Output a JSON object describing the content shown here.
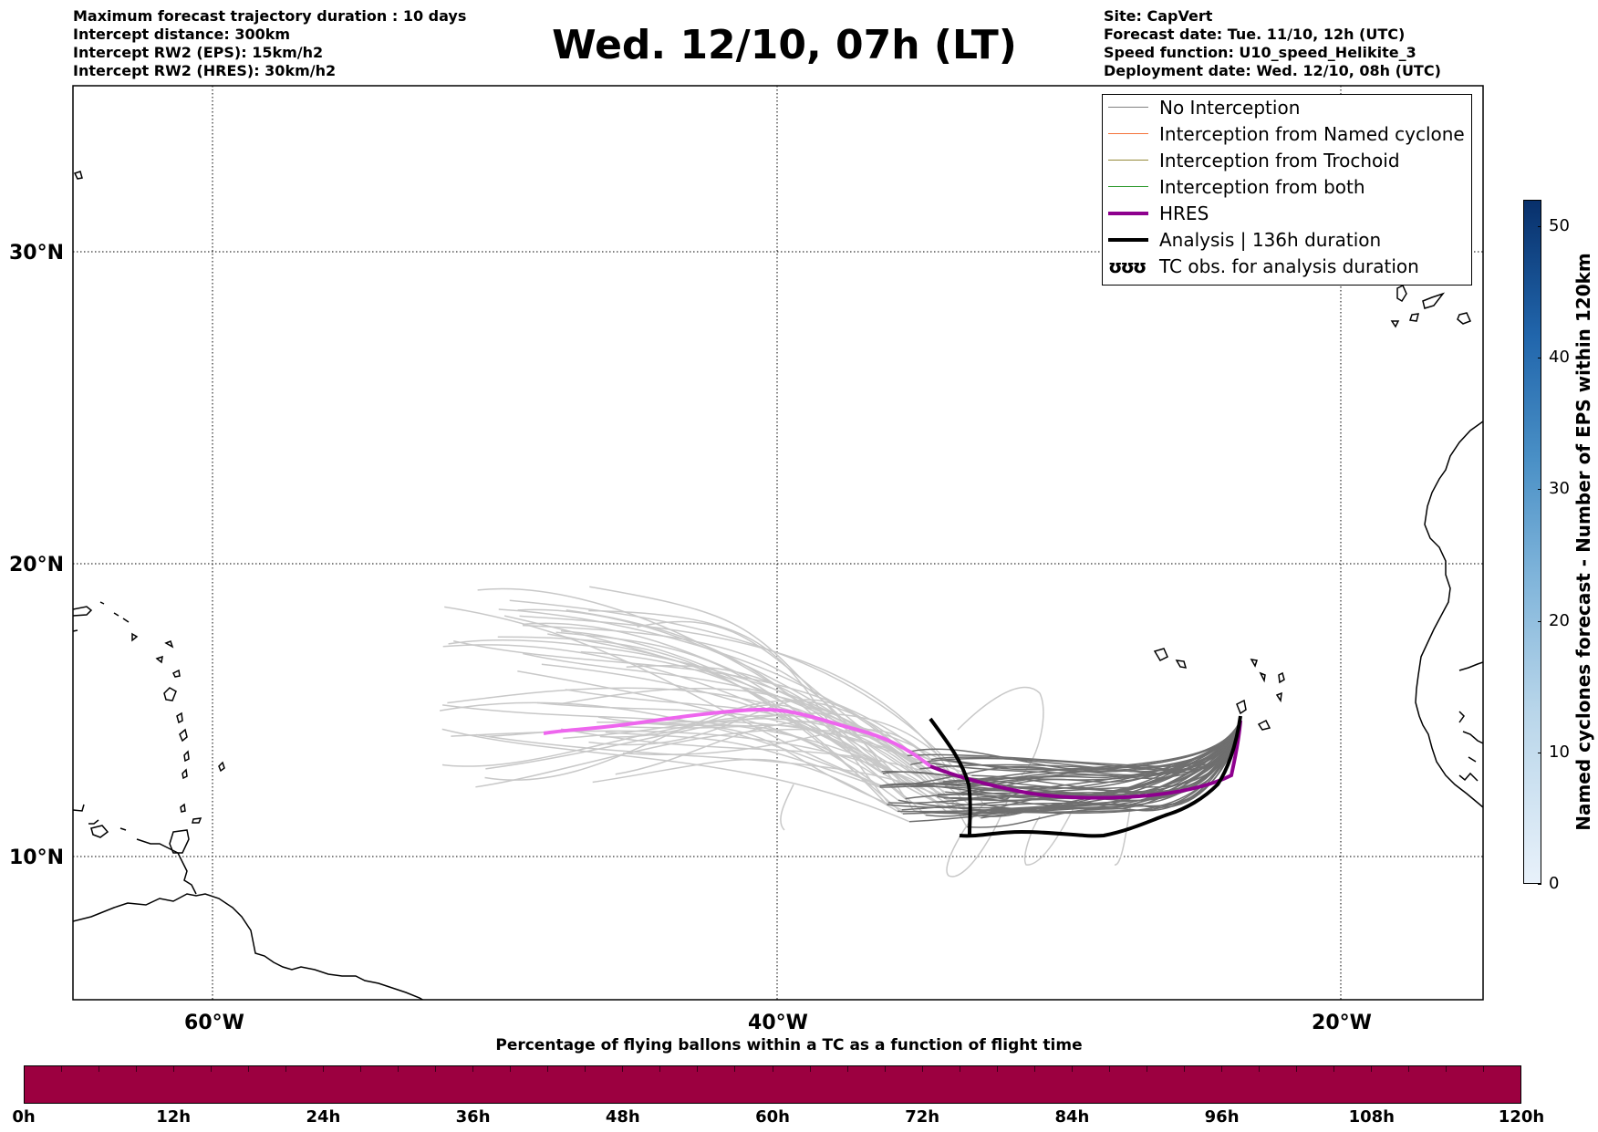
{
  "header": {
    "left_lines": [
      "Maximum forecast trajectory duration : 10 days",
      "Intercept distance: 300km",
      "Intercept RW2 (EPS):  15km/h2",
      "Intercept RW2 (HRES): 30km/h2"
    ],
    "title": "Wed. 12/10, 07h (LT)",
    "right_lines": [
      "Site: CapVert",
      "Forecast date: Tue. 11/10, 12h (UTC)",
      "Speed function: U10_speed_Helikite_3",
      "Deployment date: Wed. 12/10, 08h (UTC)"
    ]
  },
  "map": {
    "lat_labels": [
      "30°N",
      "20°N",
      "10°N"
    ],
    "lon_labels": [
      "60°W",
      "40°W",
      "20°W"
    ]
  },
  "legend": {
    "items": [
      {
        "label": "No Interception",
        "color": "#808080",
        "style": "thin"
      },
      {
        "label": "Interception from Named cyclone",
        "color": "#f4733a",
        "style": "thin"
      },
      {
        "label": "Interception from Trochoid",
        "color": "#948a3a",
        "style": "thin"
      },
      {
        "label": "Interception from both",
        "color": "#2f9a2f",
        "style": "thin"
      },
      {
        "label": "HRES",
        "color": "#8e008e",
        "style": "thick"
      },
      {
        "label": "Analysis | 136h duration",
        "color": "#000000",
        "style": "thick"
      },
      {
        "label": "TC obs. for analysis duration",
        "color": "#000000",
        "style": "symbol",
        "symbol": "ʊʊʊ"
      }
    ]
  },
  "colorbar_right": {
    "label": "Named cyclones forecast - Number of EPS within 120km",
    "ticks": [
      "0",
      "10",
      "20",
      "30",
      "40",
      "50"
    ],
    "range": [
      0,
      52
    ],
    "colors": [
      "#e8f1fa",
      "#b9d6ea",
      "#7fb4da",
      "#4a90c6",
      "#2166ac",
      "#08306b"
    ]
  },
  "bottom_bar": {
    "label": "Percentage of flying ballons within a TC as a function of flight time",
    "ticks": [
      "0h",
      "12h",
      "24h",
      "36h",
      "48h",
      "60h",
      "72h",
      "84h",
      "96h",
      "108h",
      "120h"
    ],
    "color": "#9c0040"
  }
}
